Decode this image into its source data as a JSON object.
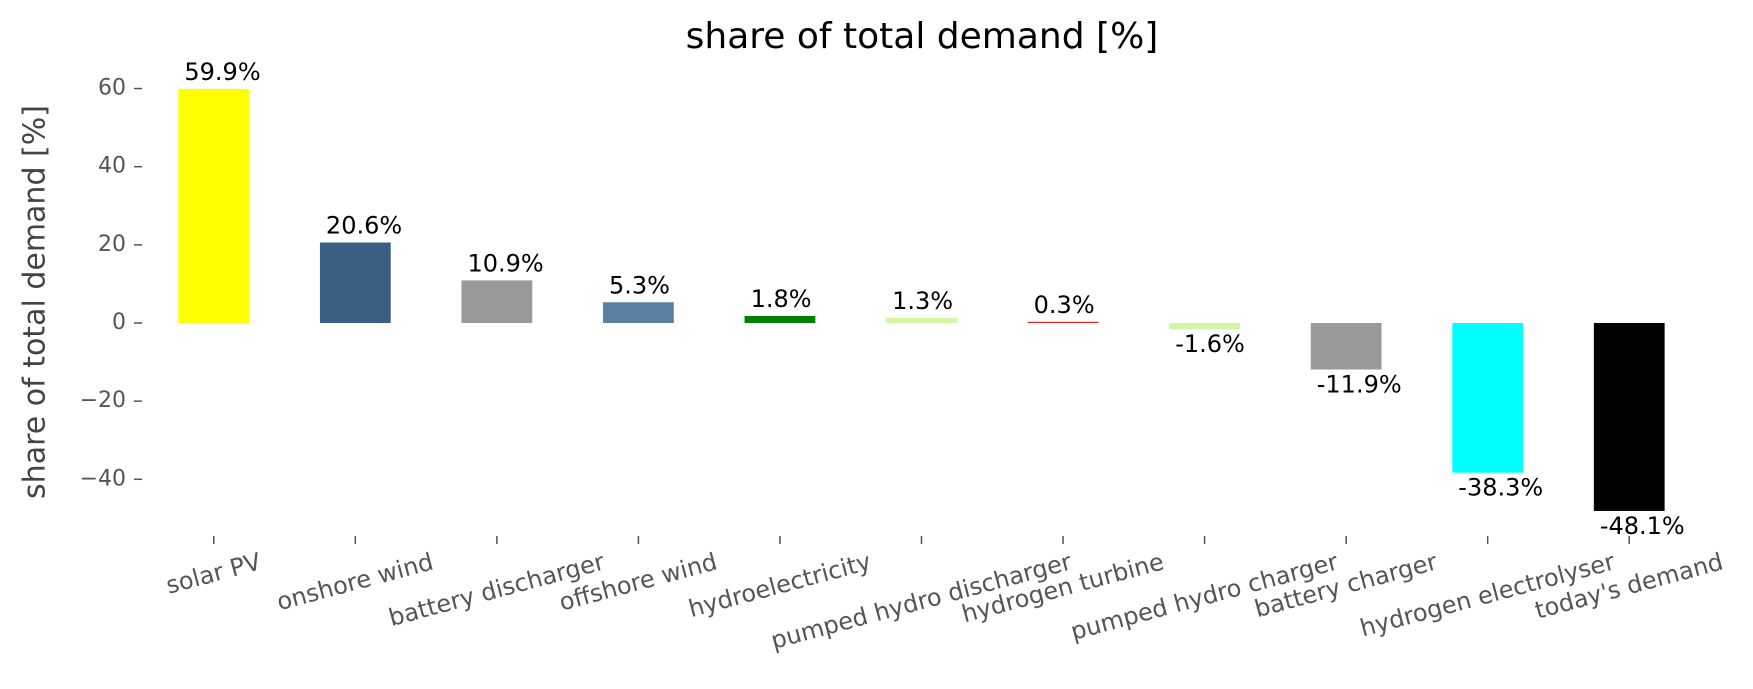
{
  "chart_data": {
    "type": "bar",
    "title": "share of total demand [%]",
    "y_label": "share of total demand [%]",
    "categories": [
      "solar PV",
      "onshore wind",
      "battery discharger",
      "offshore wind",
      "hydroelectricity",
      "pumped hydro discharger",
      "hydrogen turbine",
      "pumped hydro charger",
      "battery charger",
      "hydrogen electrolyser",
      "today's demand"
    ],
    "values": [
      59.9,
      20.6,
      10.9,
      5.3,
      1.8,
      1.3,
      0.3,
      -1.6,
      -11.9,
      -38.3,
      -48.1
    ],
    "value_labels": [
      "59.9%",
      "20.6%",
      "10.9%",
      "5.3%",
      "1.8%",
      "1.3%",
      "0.3%",
      "-1.6%",
      "-11.9%",
      "-38.3%",
      "-48.1%"
    ],
    "colors": [
      "#ffff00",
      "#3a5f82",
      "#999999",
      "#5b7fa1",
      "#008000",
      "#d4f5a3",
      "#e02020",
      "#d4f5a3",
      "#999999",
      "#00ffff",
      "#000000"
    ],
    "ylim": [
      -54,
      65
    ],
    "yticks": [
      {
        "value": -40,
        "label": "−40"
      },
      {
        "value": -20,
        "label": "−20"
      },
      0,
      20,
      40,
      60
    ],
    "grid": false
  }
}
